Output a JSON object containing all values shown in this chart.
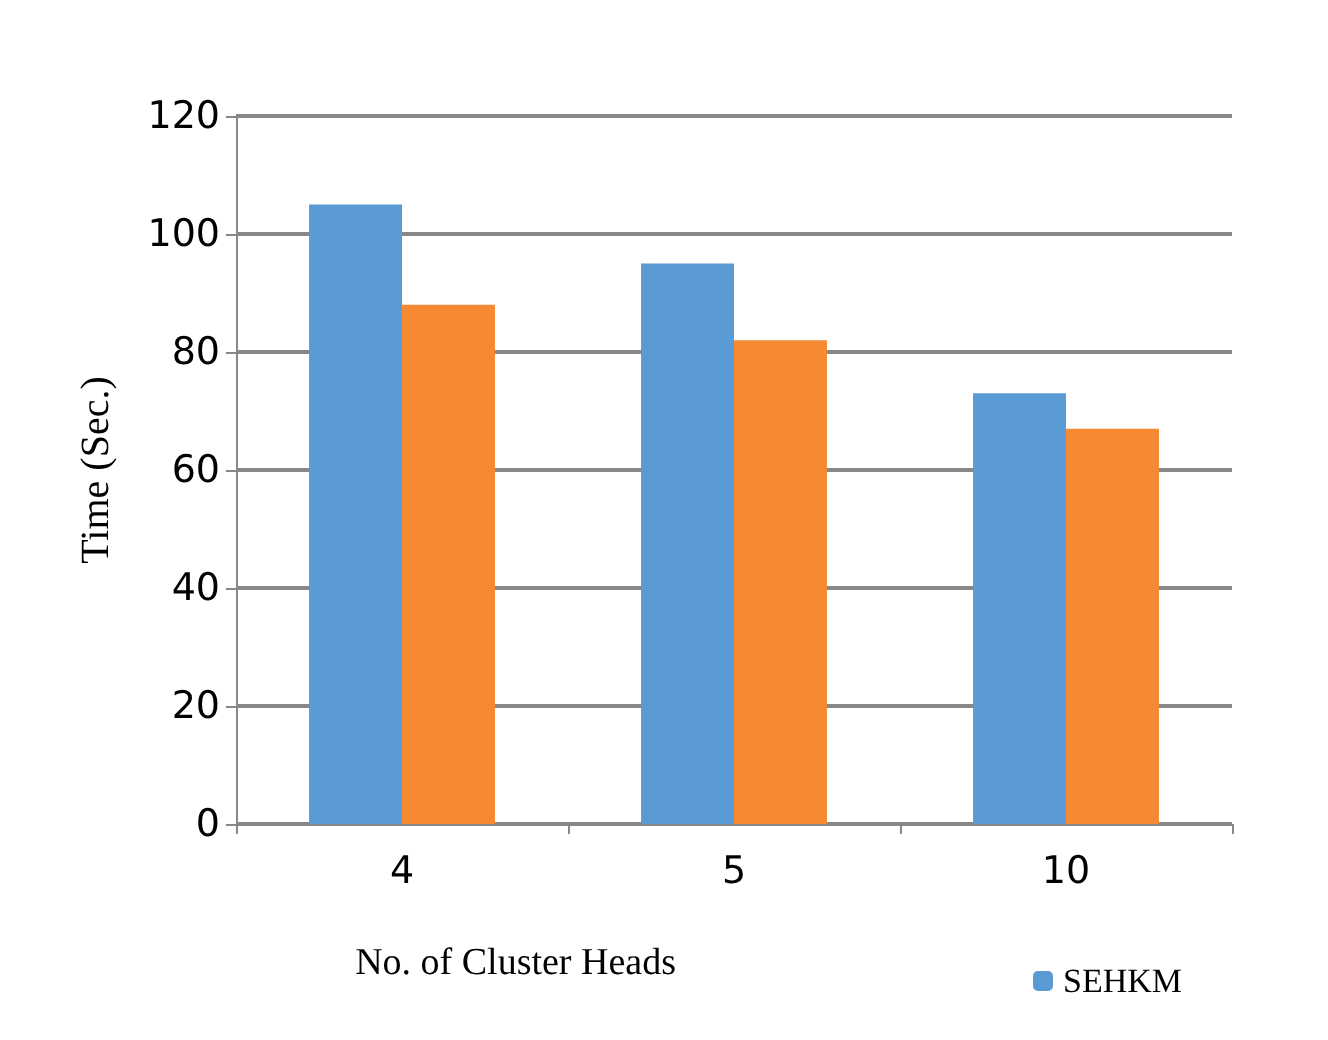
{
  "chart_data": {
    "type": "bar",
    "xlabel": "No. of Cluster Heads",
    "ylabel": "Time (Sec.)",
    "categories": [
      "4",
      "5",
      "10"
    ],
    "series": [
      {
        "name": "SEHKM",
        "color": "#5b9bd5",
        "values": [
          105,
          95,
          73
        ]
      },
      {
        "color": "#f58a33",
        "values": [
          88,
          82,
          67
        ]
      }
    ],
    "ylim": [
      0,
      120
    ],
    "yticks": [
      0,
      20,
      40,
      60,
      80,
      100,
      120
    ],
    "grid": "y",
    "legend": "bottom right"
  }
}
